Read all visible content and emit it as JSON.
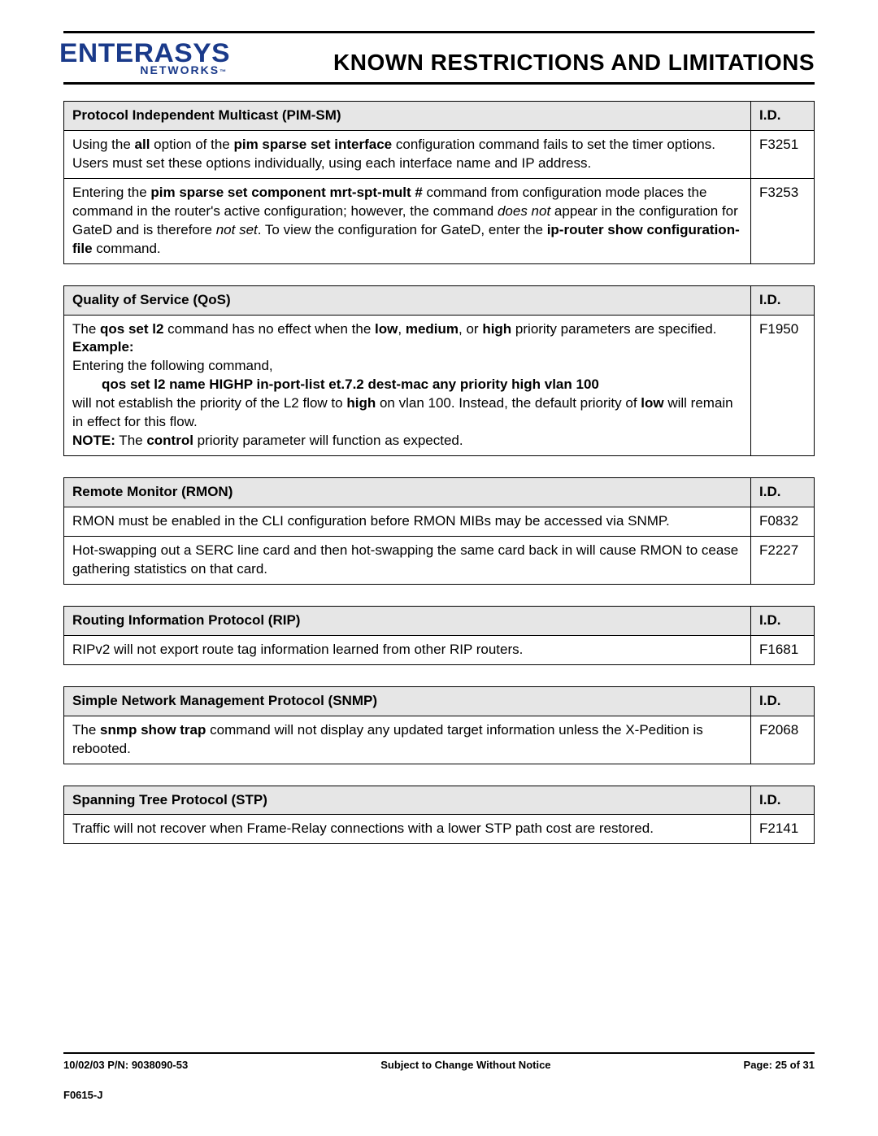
{
  "colors": {
    "logo": "#1a3a8a",
    "text": "#000000",
    "header_bg": "#e6e6e6",
    "border": "#000000",
    "page_bg": "#ffffff"
  },
  "typography": {
    "body_family": "Arial",
    "body_size_pt": 12,
    "title_size_pt": 21,
    "logo_main_size_pt": 24,
    "logo_sub_size_pt": 10
  },
  "logo": {
    "main": "ENTERASYS",
    "sub": "NETWORKS",
    "tm": "™"
  },
  "title": "KNOWN RESTRICTIONS AND LIMITATIONS",
  "id_header": "I.D.",
  "sections": [
    {
      "title": "Protocol Independent Multicast (PIM-SM)",
      "rows": [
        {
          "id": "F3251",
          "html": "Using the <span class=\"b\">all</span> option of the <span class=\"b\">pim sparse set interface</span> configuration command fails to set the timer options. Users must set these options individually, using each interface name and IP address."
        },
        {
          "id": "F3253",
          "html": "Entering the <span class=\"b\">pim sparse set component mrt-spt-mult #</span> command from configuration mode places the command in the router's active configuration; however, the command <span class=\"i\">does not</span> appear in the configuration for GateD and is therefore <span class=\"i\">not set</span>. To view the configuration for GateD, enter the <span class=\"b\">ip-router show configuration-file</span> command."
        }
      ]
    },
    {
      "title": "Quality of Service (QoS)",
      "rows": [
        {
          "id": "F1950",
          "html": "The <span class=\"b\">qos set l2</span> command has no effect when the <span class=\"b\">low</span>, <span class=\"b\">medium</span>, or <span class=\"b\">high</span> priority parameters are specified.<br><span class=\"b\">Example:</span><br>Entering the following command,<br><span class=\"indent b\">qos set l2 name HIGHP in-port-list et.7.2 dest-mac any priority high vlan 100</span>will not establish the priority of the L2 flow to <span class=\"b\">high</span> on vlan 100. Instead, the default priority of <span class=\"b\">low</span> will remain in effect for this flow.<br><span class=\"b\">NOTE:</span> The <span class=\"b\">control</span> priority parameter will function as expected."
        }
      ]
    },
    {
      "title": "Remote Monitor (RMON)",
      "rows": [
        {
          "id": "F0832",
          "html": "RMON must be enabled in the CLI configuration before RMON MIBs may be accessed via SNMP."
        },
        {
          "id": "F2227",
          "html": "Hot-swapping out a SERC line card and then hot-swapping the same card back in will cause RMON to cease gathering statistics on that card."
        }
      ]
    },
    {
      "title": "Routing Information Protocol (RIP)",
      "rows": [
        {
          "id": "F1681",
          "html": "RIPv2 will not export route tag information learned from other RIP routers."
        }
      ]
    },
    {
      "title": "Simple Network Management Protocol (SNMP)",
      "rows": [
        {
          "id": "F2068",
          "html": "The <span class=\"b\">snmp show trap</span> command will not display any updated target information unless the X-Pedition is rebooted."
        }
      ]
    },
    {
      "title": "Spanning Tree Protocol (STP)",
      "rows": [
        {
          "id": "F2141",
          "html": "Traffic will not recover when Frame-Relay connections with a lower STP path cost are restored."
        }
      ]
    }
  ],
  "footer": {
    "left": "10/02/03 P/N: 9038090-53",
    "center": "Subject to Change Without Notice",
    "right_prefix": "Page: ",
    "page_current": "25",
    "page_of": " of ",
    "page_total": "31",
    "code": "F0615-J"
  }
}
